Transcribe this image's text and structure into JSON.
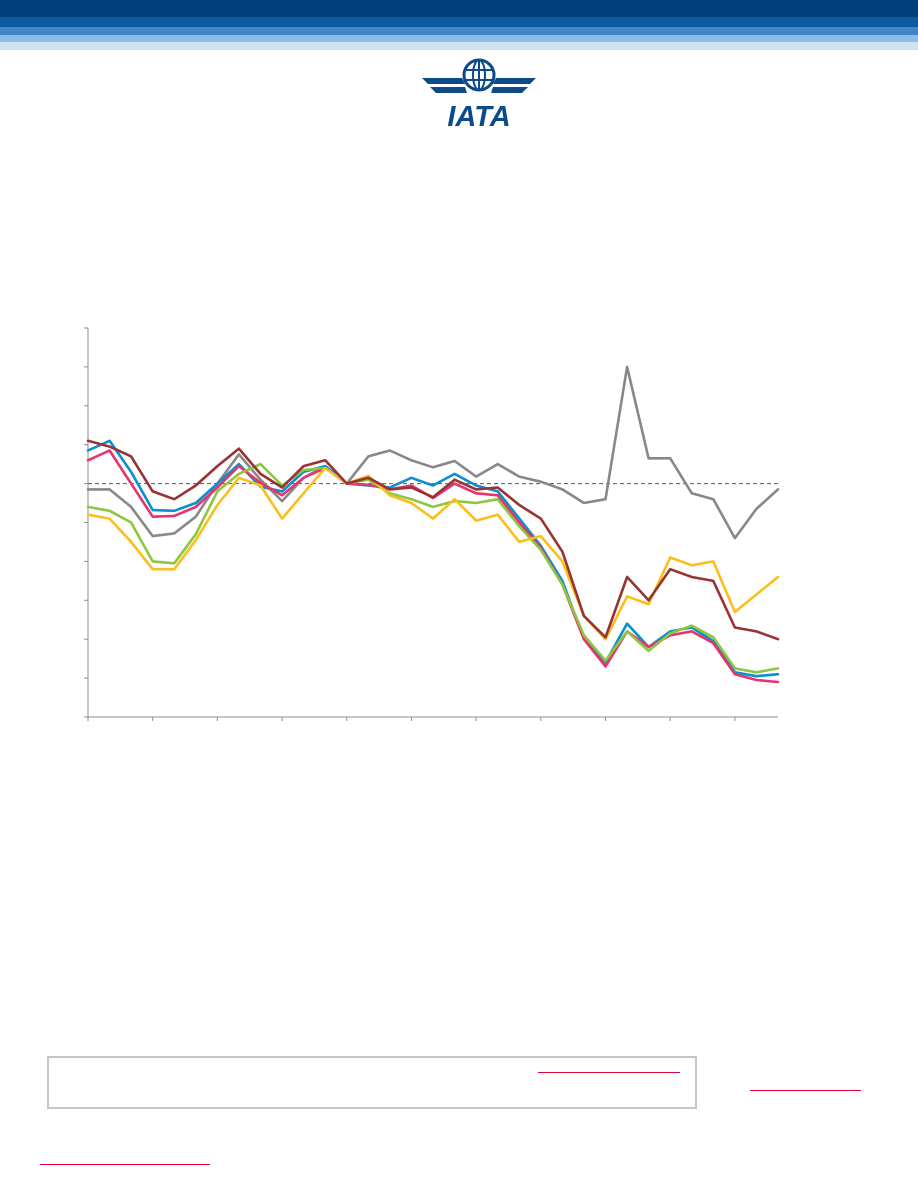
{
  "header": {
    "band_colors": [
      "#003f7a",
      "#0b5aa0",
      "#3f86c8",
      "#8dbbe6",
      "#cfe3f5"
    ],
    "logo_icon": "iata-logo-icon",
    "logo_text": "IATA",
    "logo_color": "#0d4a8a"
  },
  "chart_data": {
    "type": "line",
    "grid": false,
    "ylim": [
      -60,
      40
    ],
    "y_ticks": [
      -60,
      -50,
      -40,
      -30,
      -20,
      -10,
      0,
      10,
      20,
      30,
      40
    ],
    "reference_line": {
      "y": 0,
      "style": "dashed",
      "color": "#2f5f9e"
    },
    "x": [
      0,
      1,
      2,
      3,
      4,
      5,
      6,
      7,
      8,
      9,
      10,
      11,
      12,
      13,
      14,
      15,
      16,
      17,
      18,
      19,
      20,
      21,
      22,
      23,
      24,
      25,
      26,
      27,
      28,
      29,
      30,
      31,
      32
    ],
    "x_ticks": [
      0,
      3,
      6,
      9,
      12,
      15,
      18,
      21,
      24,
      27,
      30
    ],
    "series": [
      {
        "color": "#888888",
        "values": [
          -1.5,
          -1.5,
          -6,
          -13.5,
          -12.8,
          -8.5,
          0,
          7.5,
          1,
          -4.5,
          1.5,
          4.5,
          0,
          7,
          8.5,
          6,
          4.2,
          5.8,
          1.8,
          5,
          1.8,
          0.5,
          -1.5,
          -5,
          -4,
          30,
          6.5,
          6.5,
          -2.5,
          -4,
          -14,
          -6.5,
          -1.5
        ]
      },
      {
        "color": "#0a8fd1",
        "values": [
          8.5,
          11,
          3,
          -6.8,
          -7,
          -5,
          0,
          5,
          -0.8,
          -2,
          3,
          4.5,
          0,
          -0.5,
          -1,
          1.5,
          -0.5,
          2.5,
          -0.5,
          -2,
          -9,
          -16,
          -25,
          -40,
          -46,
          -36,
          -42,
          -38,
          -37,
          -40.5,
          -48.5,
          -49.5,
          -49
        ]
      },
      {
        "color": "#e8336d",
        "values": [
          6,
          8.5,
          0,
          -8.5,
          -8.3,
          -6,
          -1,
          4.5,
          0.2,
          -3,
          1.5,
          4,
          0,
          -0.3,
          -1.5,
          -0.5,
          -3.7,
          0,
          -2.5,
          -3,
          -10,
          -16.5,
          -26,
          -40,
          -47,
          -38,
          -42,
          -39,
          -38,
          -41,
          -49,
          -50.5,
          -51
        ]
      },
      {
        "color": "#8dc63f",
        "values": [
          -6,
          -7,
          -10,
          -20,
          -20.5,
          -13,
          -2,
          2.5,
          5,
          -0.5,
          3.5,
          4,
          0,
          1,
          -2.5,
          -4,
          -6,
          -4.5,
          -5,
          -4,
          -11,
          -17,
          -26,
          -39,
          -45.5,
          -38,
          -43,
          -38.5,
          -36.5,
          -39.5,
          -47.5,
          -48.5,
          -47.5
        ]
      },
      {
        "color": "#fbbe1b",
        "values": [
          -8,
          -9,
          -15,
          -22,
          -22,
          -14.5,
          -5.5,
          1.5,
          -0.5,
          -9,
          -2.5,
          4,
          0,
          2,
          -3,
          -5,
          -9,
          -4,
          -9.5,
          -8,
          -15,
          -13.5,
          -20,
          -34,
          -40,
          -29,
          -31,
          -19,
          -21,
          -20,
          -33,
          -28.5,
          -24
        ]
      },
      {
        "color": "#993333",
        "values": [
          11,
          9.5,
          7,
          -2,
          -4,
          -0.5,
          4.5,
          9,
          2.5,
          -1,
          4.5,
          6,
          0,
          1.5,
          -1.5,
          -1,
          -3.5,
          1,
          -1.5,
          -1,
          -5.5,
          -9,
          -17.5,
          -34,
          -39.5,
          -24,
          -30,
          -22,
          -24,
          -25,
          -37,
          -38,
          -40
        ]
      }
    ]
  },
  "subscribe_box": {
    "border_color": "#c6c6c6"
  },
  "links": {
    "color": "#e4003b"
  }
}
